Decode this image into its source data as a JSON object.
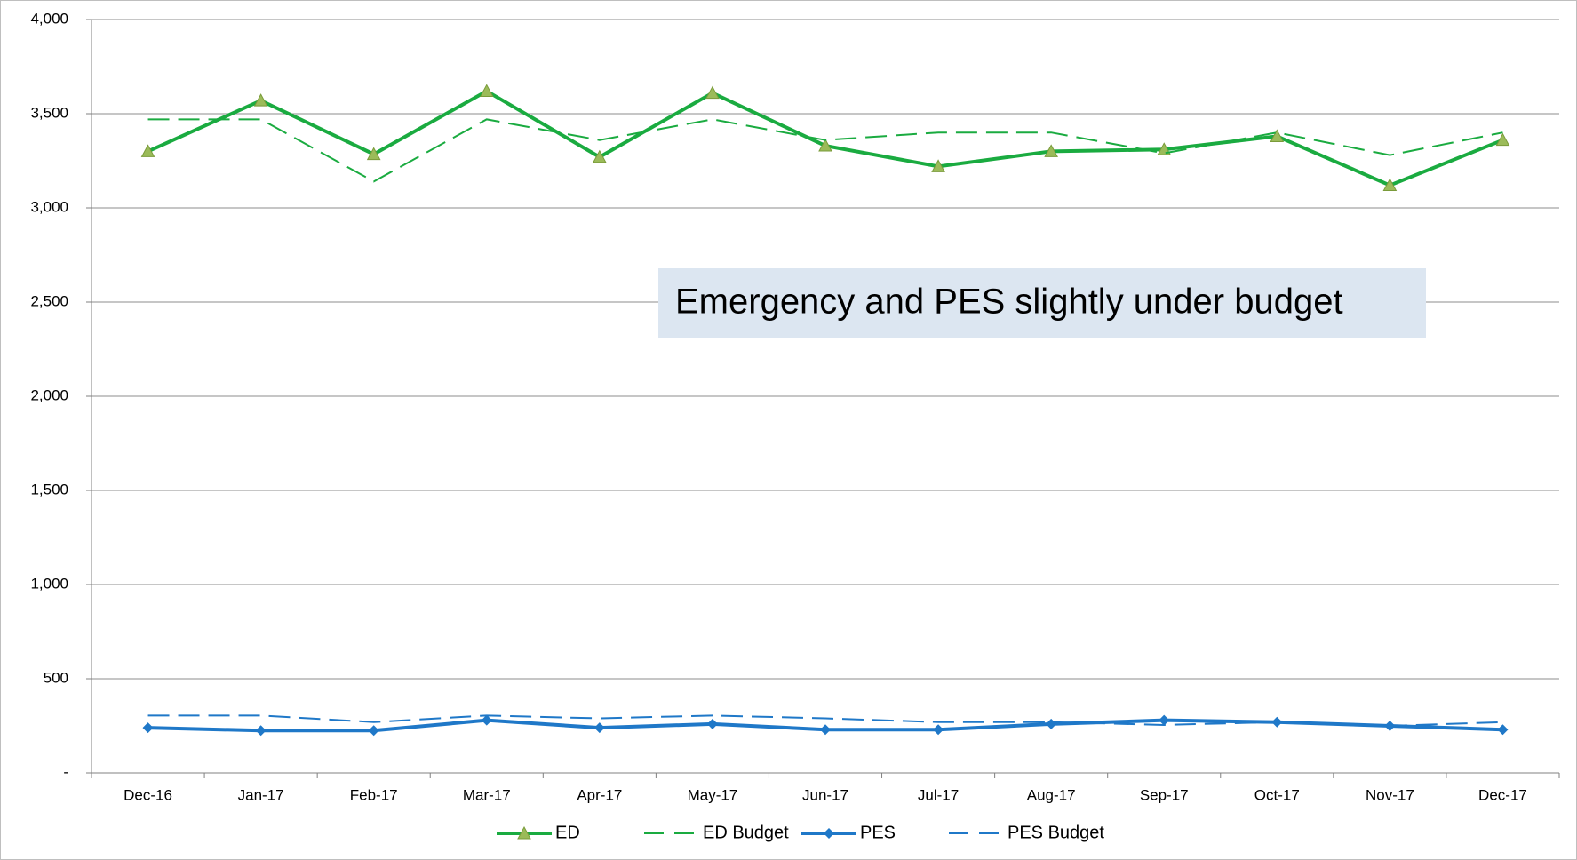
{
  "chart_data": {
    "type": "line",
    "annotation": "Emergency and PES slightly under budget",
    "categories": [
      "Dec-16",
      "Jan-17",
      "Feb-17",
      "Mar-17",
      "Apr-17",
      "May-17",
      "Jun-17",
      "Jul-17",
      "Aug-17",
      "Sep-17",
      "Oct-17",
      "Nov-17",
      "Dec-17"
    ],
    "series": [
      {
        "name": "ED",
        "color": "#1aab40",
        "dash": false,
        "marker": "triangle",
        "values": [
          3300,
          3570,
          3285,
          3620,
          3270,
          3610,
          3330,
          3220,
          3300,
          3310,
          3380,
          3120,
          3360
        ]
      },
      {
        "name": "ED Budget",
        "color": "#1aab40",
        "dash": true,
        "marker": null,
        "values": [
          3470,
          3470,
          3140,
          3470,
          3360,
          3470,
          3360,
          3400,
          3400,
          3290,
          3400,
          3280,
          3400
        ]
      },
      {
        "name": "PES",
        "color": "#1f78c8",
        "dash": false,
        "marker": "diamond",
        "values": [
          240,
          225,
          225,
          280,
          240,
          260,
          230,
          230,
          260,
          280,
          270,
          250,
          230
        ]
      },
      {
        "name": "PES Budget",
        "color": "#1f78c8",
        "dash": true,
        "marker": null,
        "values": [
          305,
          305,
          270,
          305,
          290,
          305,
          290,
          270,
          270,
          255,
          270,
          250,
          270
        ]
      }
    ],
    "ylim": [
      0,
      4000
    ],
    "yticks": [
      {
        "value": 0,
        "label": "-"
      },
      500,
      {
        "value": 1000,
        "label": "1,000"
      },
      {
        "value": 1500,
        "label": "1,500"
      },
      {
        "value": 2000,
        "label": "2,000"
      },
      {
        "value": 2500,
        "label": "2,500"
      },
      {
        "value": 3000,
        "label": "3,000"
      },
      {
        "value": 3500,
        "label": "3,500"
      },
      {
        "value": 4000,
        "label": "4,000"
      }
    ],
    "grid": true,
    "legend": "bottom"
  }
}
